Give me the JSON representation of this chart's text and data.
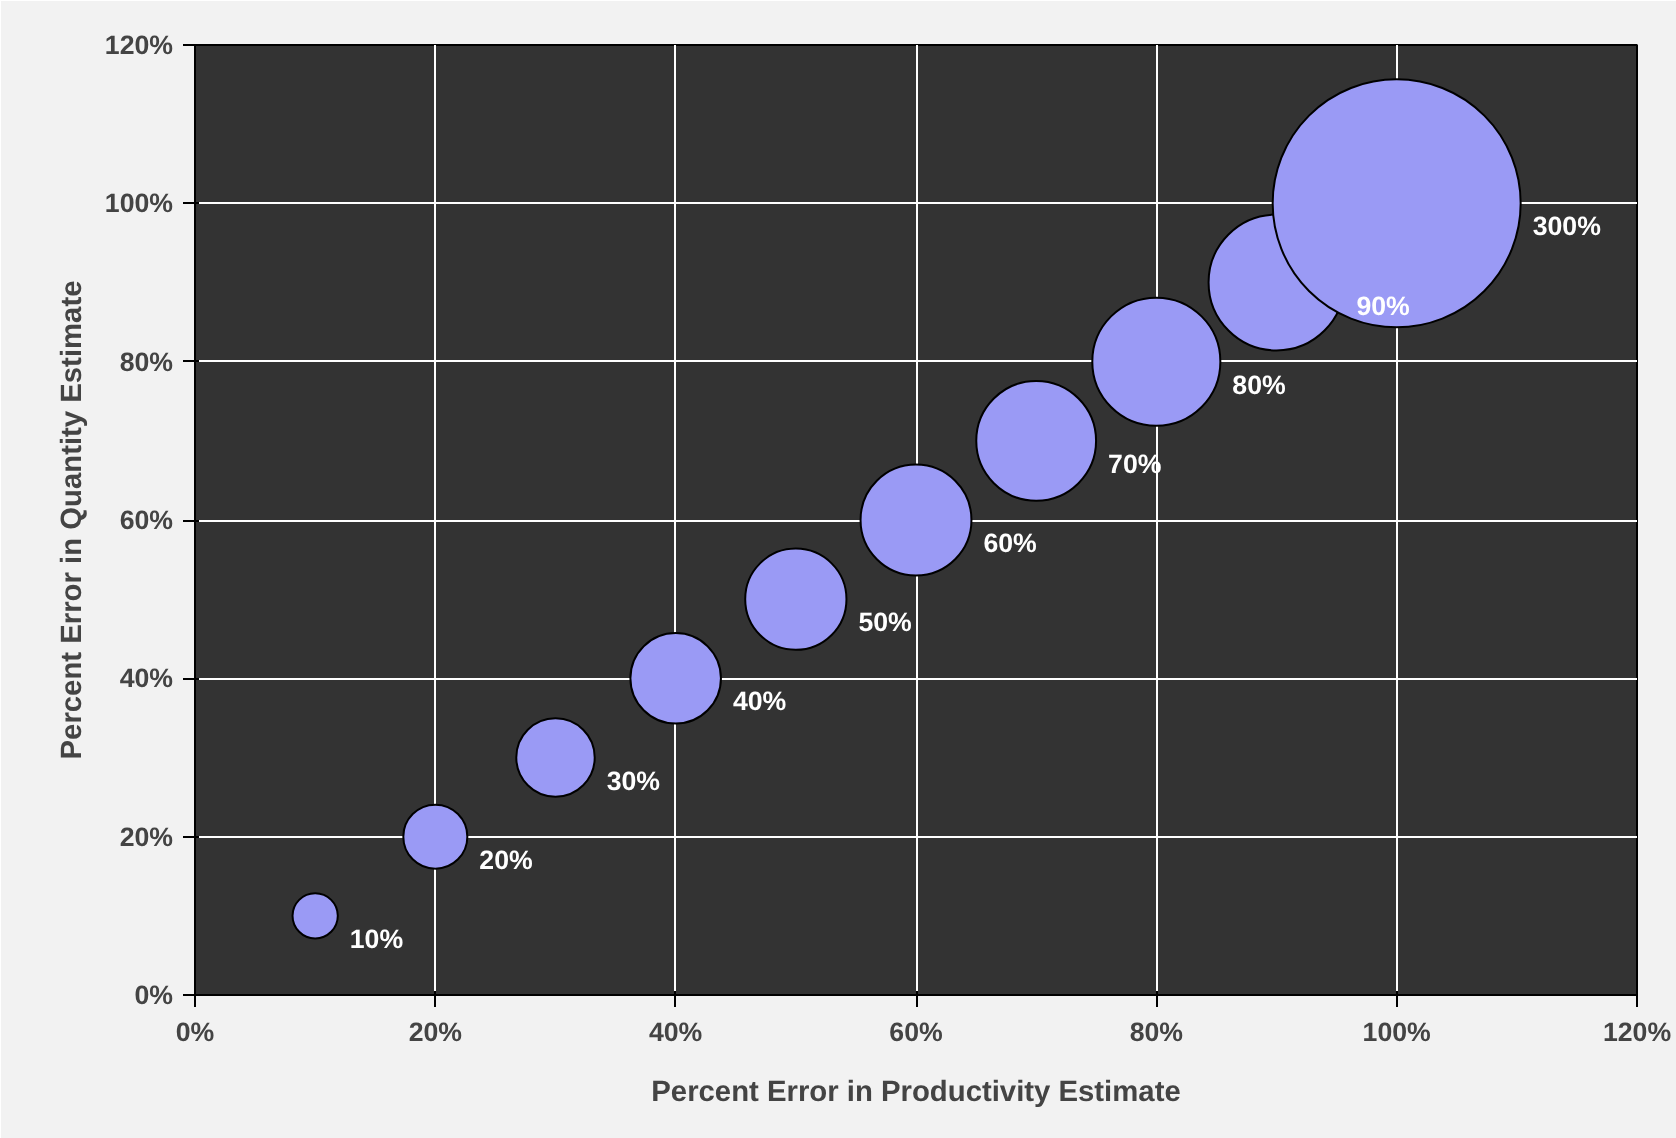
{
  "chart_data": {
    "type": "bubble",
    "xlabel": "Percent Error in Productivity Estimate",
    "ylabel": "Percent Error in Quantity Estimate",
    "x": [
      10,
      20,
      30,
      40,
      50,
      60,
      70,
      80,
      90,
      100
    ],
    "series": [
      {
        "color": "#9a9af5",
        "values": [
          10,
          20,
          30,
          40,
          50,
          60,
          70,
          80,
          90,
          100
        ],
        "sizes": [
          10,
          20,
          30,
          40,
          50,
          60,
          70,
          80,
          90,
          300
        ],
        "value_labels": [
          "10%",
          "20%",
          "30%",
          "40%",
          "50%",
          "60%",
          "70%",
          "80%",
          "90%",
          "300%"
        ]
      }
    ],
    "xlim": [
      0,
      120
    ],
    "ylim": [
      0,
      120
    ],
    "xticks": [
      {
        "value": 0,
        "label": "0%"
      },
      {
        "value": 20,
        "label": "20%"
      },
      {
        "value": 40,
        "label": "40%"
      },
      {
        "value": 60,
        "label": "60%"
      },
      {
        "value": 80,
        "label": "80%"
      },
      {
        "value": 100,
        "label": "100%"
      },
      {
        "value": 120,
        "label": "120%"
      }
    ],
    "yticks": [
      {
        "value": 0,
        "label": "0%"
      },
      {
        "value": 20,
        "label": "20%"
      },
      {
        "value": 40,
        "label": "40%"
      },
      {
        "value": 60,
        "label": "60%"
      },
      {
        "value": 80,
        "label": "80%"
      },
      {
        "value": 100,
        "label": "100%"
      },
      {
        "value": 120,
        "label": "120%"
      }
    ],
    "grid": true
  }
}
